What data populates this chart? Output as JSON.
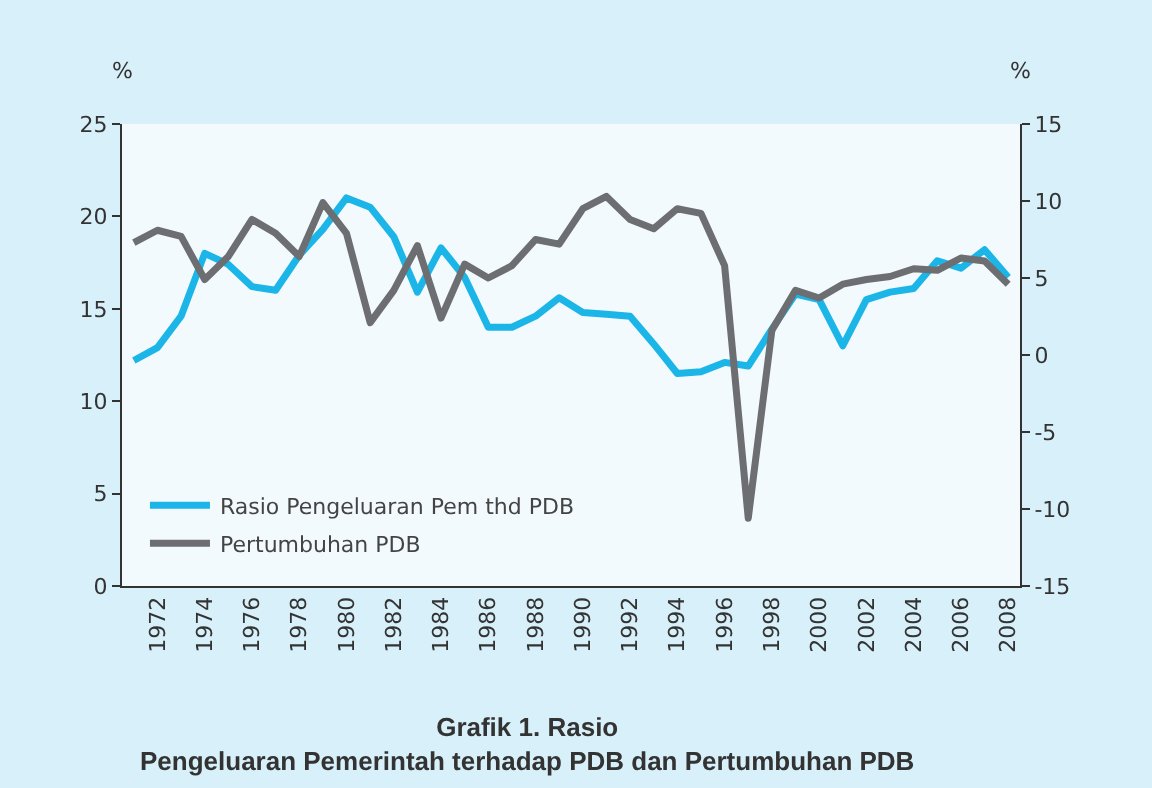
{
  "chart_data": {
    "type": "line",
    "title": "Grafik 1. Rasio\nPengeluaran Pemerintah terhadap PDB dan Pertumbuhan PDB",
    "ylabel": "%",
    "y2label": "%",
    "x": [
      1971,
      1972,
      1973,
      1974,
      1975,
      1976,
      1977,
      1978,
      1979,
      1980,
      1981,
      1982,
      1983,
      1984,
      1985,
      1986,
      1987,
      1988,
      1989,
      1990,
      1991,
      1992,
      1993,
      1994,
      1995,
      1996,
      1997,
      1998,
      1999,
      2000,
      2001,
      2002,
      2003,
      2004,
      2005,
      2006,
      2007,
      2008
    ],
    "series": [
      {
        "name": "Rasio Pengeluaran Pem thd PDB",
        "color": "#1cb5e8",
        "values": [
          12.2,
          12.9,
          14.6,
          18.0,
          17.4,
          16.2,
          16.0,
          17.9,
          19.3,
          21.0,
          20.5,
          18.9,
          15.9,
          18.3,
          16.7,
          14.0,
          14.0,
          14.6,
          15.6,
          14.8,
          14.7,
          14.6,
          13.1,
          11.5,
          11.6,
          12.1,
          11.9,
          13.9,
          15.8,
          15.5,
          13.0,
          15.5,
          15.9,
          16.1,
          17.6,
          17.2,
          18.2,
          16.7
        ]
      },
      {
        "name": "Pertumbuhan PDB",
        "color": "#6d6e71",
        "axis": "y2",
        "values": [
          7.3,
          8.1,
          7.7,
          4.9,
          6.4,
          8.8,
          7.9,
          6.4,
          9.9,
          7.9,
          2.1,
          4.2,
          7.1,
          2.4,
          5.9,
          5.0,
          5.8,
          7.5,
          7.2,
          9.5,
          10.3,
          8.8,
          8.2,
          9.5,
          9.2,
          5.8,
          -10.6,
          1.6,
          4.2,
          3.7,
          4.6,
          4.9,
          5.1,
          5.6,
          5.5,
          6.3,
          6.1,
          4.6
        ]
      }
    ],
    "xlim": [
      1970.5,
      2008.5
    ],
    "xticks": [
      1972,
      1974,
      1976,
      1978,
      1980,
      1982,
      1984,
      1986,
      1988,
      1990,
      1992,
      1994,
      1996,
      1998,
      2000,
      2002,
      2004,
      2006,
      2008
    ],
    "ylim": [
      0,
      25
    ],
    "yticks": [
      0,
      5,
      10,
      15,
      20,
      25
    ],
    "y2lim": [
      -15,
      15
    ],
    "y2ticks": [
      -15,
      -10,
      -5,
      0,
      5,
      10,
      15
    ],
    "grid": false,
    "legend": "bottom left",
    "marker": "none",
    "line_style": "solid"
  }
}
